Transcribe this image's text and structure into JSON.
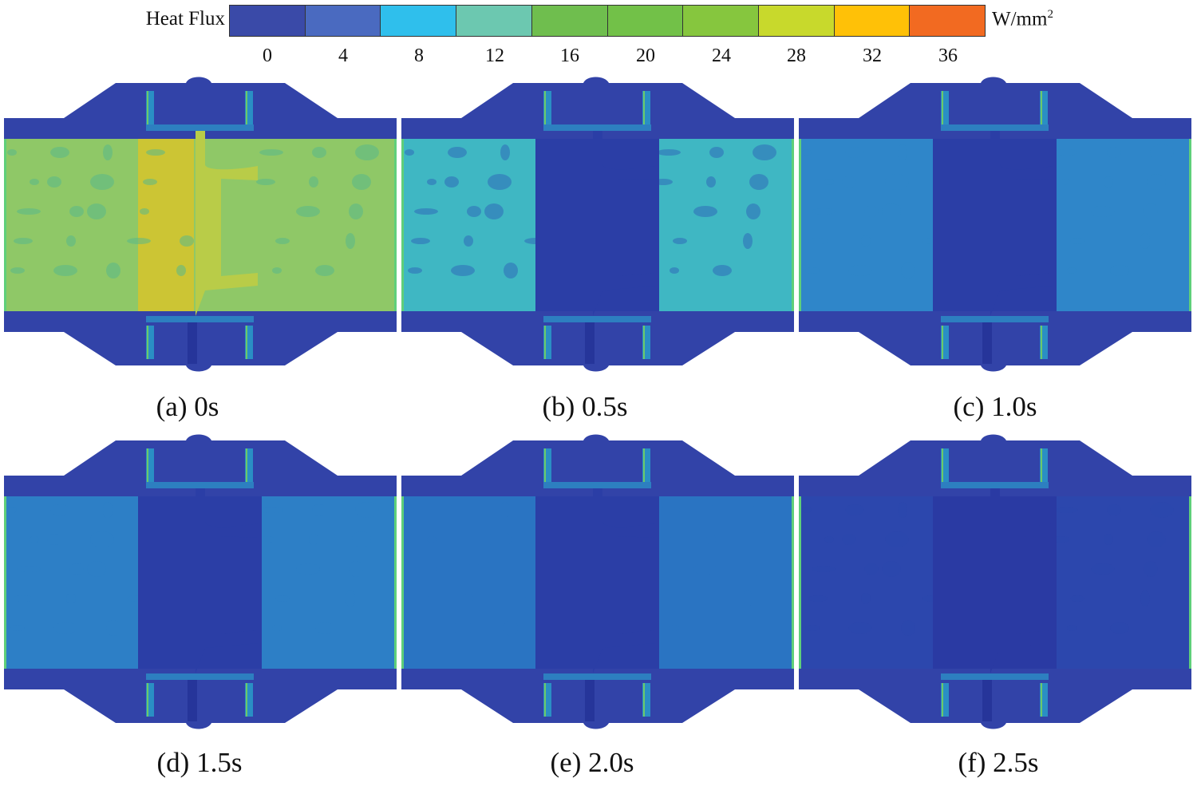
{
  "legend": {
    "title": "Heat Flux",
    "unit_base": "W/mm",
    "unit_exp": "2",
    "ticks": [
      "0",
      "4",
      "8",
      "12",
      "16",
      "20",
      "24",
      "28",
      "32",
      "36"
    ],
    "colors": [
      "#3a4aa8",
      "#4a6ac0",
      "#2fbfec",
      "#6cc8b0",
      "#6fbe4e",
      "#72c148",
      "#86c63e",
      "#c8d92c",
      "#ffc107",
      "#f26a21",
      "#e8262d"
    ]
  },
  "panels": [
    {
      "caption": "(a) 0s",
      "pipe_color": "#8fc867",
      "center_color": "#b9cc48",
      "hot_color": "#d7c42c",
      "spots": "#5ab88a",
      "band_color": "#2b3a9e"
    },
    {
      "caption": "(b) 0.5s",
      "pipe_color": "#3fb7c3",
      "center_color": "#2b3ea6",
      "hot_color": "#3fb7c3",
      "spots": "#2f6bb8",
      "band_color": "#2b3ea6"
    },
    {
      "caption": "(c) 1.0s",
      "pipe_color": "#2f86c9",
      "center_color": "#2b3ea6",
      "hot_color": "#2f86c9",
      "spots": "#2f86c9",
      "band_color": "#2b3ea6"
    },
    {
      "caption": "(d) 1.5s",
      "pipe_color": "#2d7fc6",
      "center_color": "#2b3ea6",
      "hot_color": "#2d7fc6",
      "spots": "#2d7fc6",
      "band_color": "#2b3ea6"
    },
    {
      "caption": "(e) 2.0s",
      "pipe_color": "#2a74c2",
      "center_color": "#2b3ea6",
      "hot_color": "#2a74c2",
      "spots": "#2a74c2",
      "band_color": "#2b3ea6"
    },
    {
      "caption": "(f) 2.5s",
      "pipe_color": "#2c47ad",
      "center_color": "#2a3aa3",
      "hot_color": "#2c47ad",
      "spots": "#2c47ad",
      "band_color": "#2a3aa3"
    }
  ]
}
